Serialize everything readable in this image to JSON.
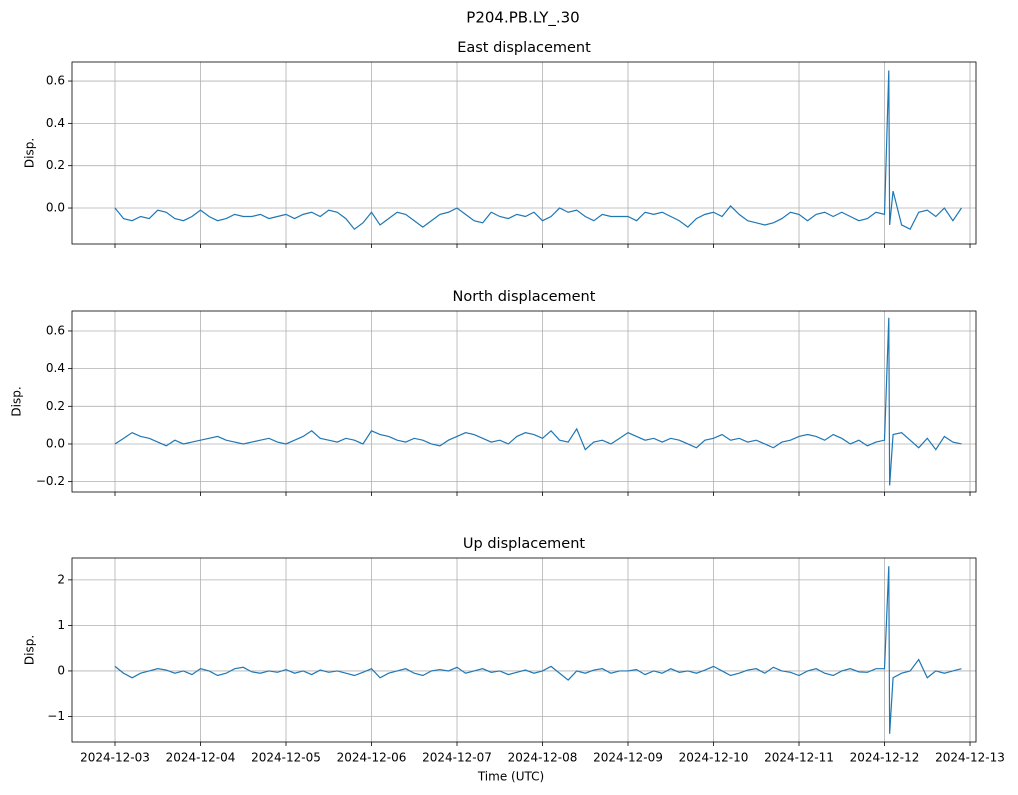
{
  "title": "P204.PB.LY_.30",
  "chart_data": [
    {
      "type": "line",
      "title": "East displacement",
      "ylabel": "Disp.",
      "color": "#1f77b4",
      "grid": true,
      "x": [
        3.0,
        3.1,
        3.2,
        3.3,
        3.4,
        3.5,
        3.6,
        3.7,
        3.8,
        3.9,
        4.0,
        4.1,
        4.2,
        4.3,
        4.4,
        4.5,
        4.6,
        4.7,
        4.8,
        4.9,
        5.0,
        5.1,
        5.2,
        5.3,
        5.4,
        5.5,
        5.6,
        5.7,
        5.8,
        5.9,
        6.0,
        6.1,
        6.2,
        6.3,
        6.4,
        6.5,
        6.6,
        6.7,
        6.8,
        6.9,
        7.0,
        7.1,
        7.2,
        7.3,
        7.4,
        7.5,
        7.6,
        7.7,
        7.8,
        7.9,
        8.0,
        8.1,
        8.2,
        8.3,
        8.4,
        8.5,
        8.6,
        8.7,
        8.8,
        8.9,
        9.0,
        9.1,
        9.2,
        9.3,
        9.4,
        9.5,
        9.6,
        9.7,
        9.8,
        9.9,
        10.0,
        10.1,
        10.2,
        10.3,
        10.4,
        10.5,
        10.6,
        10.7,
        10.8,
        10.9,
        11.0,
        11.1,
        11.2,
        11.3,
        11.4,
        11.5,
        11.6,
        11.7,
        11.8,
        11.9,
        12.0,
        12.05,
        12.06,
        12.1,
        12.2,
        12.3,
        12.4,
        12.5,
        12.6,
        12.7,
        12.8,
        12.9
      ],
      "values": [
        0.0,
        -0.05,
        -0.06,
        -0.04,
        -0.05,
        -0.01,
        -0.02,
        -0.05,
        -0.06,
        -0.04,
        -0.01,
        -0.04,
        -0.06,
        -0.05,
        -0.03,
        -0.04,
        -0.04,
        -0.03,
        -0.05,
        -0.04,
        -0.03,
        -0.05,
        -0.03,
        -0.02,
        -0.04,
        -0.01,
        -0.02,
        -0.05,
        -0.1,
        -0.07,
        -0.02,
        -0.08,
        -0.05,
        -0.02,
        -0.03,
        -0.06,
        -0.09,
        -0.06,
        -0.03,
        -0.02,
        0.0,
        -0.03,
        -0.06,
        -0.07,
        -0.02,
        -0.04,
        -0.05,
        -0.03,
        -0.04,
        -0.02,
        -0.06,
        -0.04,
        0.0,
        -0.02,
        -0.01,
        -0.04,
        -0.06,
        -0.03,
        -0.04,
        -0.04,
        -0.04,
        -0.06,
        -0.02,
        -0.03,
        -0.02,
        -0.04,
        -0.06,
        -0.09,
        -0.05,
        -0.03,
        -0.02,
        -0.04,
        0.01,
        -0.03,
        -0.06,
        -0.07,
        -0.08,
        -0.07,
        -0.05,
        -0.02,
        -0.03,
        -0.06,
        -0.03,
        -0.02,
        -0.04,
        -0.02,
        -0.04,
        -0.06,
        -0.05,
        -0.02,
        -0.03,
        0.65,
        -0.08,
        0.08,
        -0.08,
        -0.1,
        -0.02,
        -0.01,
        -0.04,
        0.0,
        -0.06,
        0.0
      ],
      "xlim": [
        2.497,
        13.07
      ],
      "xticks": [
        3,
        4,
        5,
        6,
        7,
        8,
        9,
        10,
        11,
        12,
        13
      ],
      "ylim": [
        -0.17,
        0.69
      ],
      "yticks": [
        {
          "value": 0,
          "label": "0.0"
        },
        0.2,
        0.4,
        0.6
      ]
    },
    {
      "type": "line",
      "title": "North displacement",
      "ylabel": "Disp.",
      "color": "#1f77b4",
      "grid": true,
      "x": [
        3.0,
        3.1,
        3.2,
        3.3,
        3.4,
        3.5,
        3.6,
        3.7,
        3.8,
        3.9,
        4.0,
        4.1,
        4.2,
        4.3,
        4.4,
        4.5,
        4.6,
        4.7,
        4.8,
        4.9,
        5.0,
        5.1,
        5.2,
        5.3,
        5.4,
        5.5,
        5.6,
        5.7,
        5.8,
        5.9,
        6.0,
        6.1,
        6.2,
        6.3,
        6.4,
        6.5,
        6.6,
        6.7,
        6.8,
        6.9,
        7.0,
        7.1,
        7.2,
        7.3,
        7.4,
        7.5,
        7.6,
        7.7,
        7.8,
        7.9,
        8.0,
        8.1,
        8.2,
        8.3,
        8.4,
        8.5,
        8.6,
        8.7,
        8.8,
        8.9,
        9.0,
        9.1,
        9.2,
        9.3,
        9.4,
        9.5,
        9.6,
        9.7,
        9.8,
        9.9,
        10.0,
        10.1,
        10.2,
        10.3,
        10.4,
        10.5,
        10.6,
        10.7,
        10.8,
        10.9,
        11.0,
        11.1,
        11.2,
        11.3,
        11.4,
        11.5,
        11.6,
        11.7,
        11.8,
        11.9,
        12.0,
        12.05,
        12.06,
        12.1,
        12.2,
        12.3,
        12.4,
        12.5,
        12.6,
        12.7,
        12.8,
        12.9
      ],
      "values": [
        0.0,
        0.03,
        0.06,
        0.04,
        0.03,
        0.01,
        -0.01,
        0.02,
        0.0,
        0.01,
        0.02,
        0.03,
        0.04,
        0.02,
        0.01,
        0.0,
        0.01,
        0.02,
        0.03,
        0.01,
        0.0,
        0.02,
        0.04,
        0.07,
        0.03,
        0.02,
        0.01,
        0.03,
        0.02,
        0.0,
        0.07,
        0.05,
        0.04,
        0.02,
        0.01,
        0.03,
        0.02,
        0.0,
        -0.01,
        0.02,
        0.04,
        0.06,
        0.05,
        0.03,
        0.01,
        0.02,
        0.0,
        0.04,
        0.06,
        0.05,
        0.03,
        0.07,
        0.02,
        0.01,
        0.08,
        -0.03,
        0.01,
        0.02,
        0.0,
        0.03,
        0.06,
        0.04,
        0.02,
        0.03,
        0.01,
        0.03,
        0.02,
        0.0,
        -0.02,
        0.02,
        0.03,
        0.05,
        0.02,
        0.03,
        0.01,
        0.02,
        0.0,
        -0.02,
        0.01,
        0.02,
        0.04,
        0.05,
        0.04,
        0.02,
        0.05,
        0.03,
        0.0,
        0.02,
        -0.01,
        0.01,
        0.02,
        0.67,
        -0.22,
        0.05,
        0.06,
        0.02,
        -0.02,
        0.03,
        -0.03,
        0.04,
        0.01,
        0.0
      ],
      "xlim": [
        2.497,
        13.07
      ],
      "xticks": [
        3,
        4,
        5,
        6,
        7,
        8,
        9,
        10,
        11,
        12,
        13
      ],
      "ylim": [
        -0.255,
        0.706
      ],
      "yticks": [
        {
          "value": -0.2,
          "label": "−0.2"
        },
        {
          "value": 0,
          "label": "0.0"
        },
        0.2,
        0.4,
        0.6
      ]
    },
    {
      "type": "line",
      "title": "Up displacement",
      "ylabel": "Disp.",
      "xlabel": "Time (UTC)",
      "color": "#1f77b4",
      "grid": true,
      "x": [
        3.0,
        3.1,
        3.2,
        3.3,
        3.4,
        3.5,
        3.6,
        3.7,
        3.8,
        3.9,
        4.0,
        4.1,
        4.2,
        4.3,
        4.4,
        4.5,
        4.6,
        4.7,
        4.8,
        4.9,
        5.0,
        5.1,
        5.2,
        5.3,
        5.4,
        5.5,
        5.6,
        5.7,
        5.8,
        5.9,
        6.0,
        6.1,
        6.2,
        6.3,
        6.4,
        6.5,
        6.6,
        6.7,
        6.8,
        6.9,
        7.0,
        7.1,
        7.2,
        7.3,
        7.4,
        7.5,
        7.6,
        7.7,
        7.8,
        7.9,
        8.0,
        8.1,
        8.2,
        8.3,
        8.4,
        8.5,
        8.6,
        8.7,
        8.8,
        8.9,
        9.0,
        9.1,
        9.2,
        9.3,
        9.4,
        9.5,
        9.6,
        9.7,
        9.8,
        9.9,
        10.0,
        10.1,
        10.2,
        10.3,
        10.4,
        10.5,
        10.6,
        10.7,
        10.8,
        10.9,
        11.0,
        11.1,
        11.2,
        11.3,
        11.4,
        11.5,
        11.6,
        11.7,
        11.8,
        11.9,
        12.0,
        12.05,
        12.06,
        12.1,
        12.2,
        12.3,
        12.4,
        12.5,
        12.6,
        12.7,
        12.8,
        12.9
      ],
      "values": [
        0.1,
        -0.05,
        -0.15,
        -0.05,
        0.0,
        0.05,
        0.02,
        -0.05,
        0.0,
        -0.08,
        0.05,
        0.0,
        -0.1,
        -0.05,
        0.05,
        0.08,
        -0.02,
        -0.05,
        0.0,
        -0.03,
        0.03,
        -0.05,
        0.0,
        -0.08,
        0.02,
        -0.03,
        0.0,
        -0.05,
        -0.1,
        -0.03,
        0.05,
        -0.15,
        -0.05,
        0.0,
        0.05,
        -0.05,
        -0.1,
        0.0,
        0.03,
        0.0,
        0.08,
        -0.05,
        0.0,
        0.05,
        -0.03,
        0.0,
        -0.08,
        -0.03,
        0.02,
        -0.05,
        0.0,
        0.1,
        -0.05,
        -0.2,
        0.0,
        -0.05,
        0.02,
        0.05,
        -0.05,
        0.0,
        0.0,
        0.03,
        -0.08,
        0.0,
        -0.05,
        0.05,
        -0.03,
        0.0,
        -0.05,
        0.02,
        0.1,
        0.0,
        -0.1,
        -0.05,
        0.02,
        0.05,
        -0.05,
        0.08,
        0.0,
        -0.03,
        -0.1,
        0.0,
        0.05,
        -0.05,
        -0.1,
        0.0,
        0.05,
        -0.02,
        -0.03,
        0.05,
        0.05,
        2.3,
        -1.38,
        -0.15,
        -0.05,
        0.0,
        0.25,
        -0.15,
        0.0,
        -0.05,
        0.0,
        0.05
      ],
      "xlim": [
        2.497,
        13.07
      ],
      "xticks": [
        {
          "value": 3,
          "label": "2024-12-03"
        },
        {
          "value": 4,
          "label": "2024-12-04"
        },
        {
          "value": 5,
          "label": "2024-12-05"
        },
        {
          "value": 6,
          "label": "2024-12-06"
        },
        {
          "value": 7,
          "label": "2024-12-07"
        },
        {
          "value": 8,
          "label": "2024-12-08"
        },
        {
          "value": 9,
          "label": "2024-12-09"
        },
        {
          "value": 10,
          "label": "2024-12-10"
        },
        {
          "value": 11,
          "label": "2024-12-11"
        },
        {
          "value": 12,
          "label": "2024-12-12"
        },
        {
          "value": 13,
          "label": "2024-12-13"
        }
      ],
      "ylim": [
        -1.56,
        2.48
      ],
      "yticks": [
        {
          "value": -1,
          "label": "−1"
        },
        0,
        1,
        2
      ]
    }
  ]
}
